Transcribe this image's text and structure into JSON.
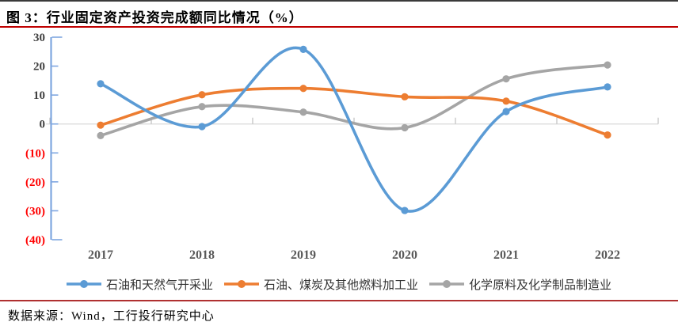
{
  "figure": {
    "title": "图 3：行业固定资产投资完成额同比情况（%）"
  },
  "footer": {
    "text": "数据来源：Wind，工行投行研究中心"
  },
  "colors": {
    "blue": "#5B9BD5",
    "orange": "#ED7D31",
    "gray": "#A5A5A5",
    "axis": "#7EA6E0",
    "zero_line": "#D9D9D9",
    "boundary_tick": "#BFBFBF",
    "positive_label": "#404040",
    "negative_label": "#FF0000",
    "title_rule": "#C00000",
    "footer_rule": "#B03030"
  },
  "chart_data": {
    "type": "line",
    "title": "图 3：行业固定资产投资完成额同比情况（%）",
    "x": [
      "2017",
      "2018",
      "2019",
      "2020",
      "2021",
      "2022"
    ],
    "series": [
      {
        "name": "石油和天然气开采业",
        "color": "#5B9BD5",
        "values": [
          13.9,
          -0.9,
          25.8,
          -29.9,
          4.3,
          12.8
        ]
      },
      {
        "name": "石油、煤炭及其他燃料加工业",
        "color": "#ED7D31",
        "values": [
          -0.4,
          10.1,
          12.3,
          9.4,
          7.9,
          -3.8
        ]
      },
      {
        "name": "化学原料及化学制品制造业",
        "color": "#A5A5A5",
        "values": [
          -4.0,
          6.0,
          4.1,
          -1.3,
          15.6,
          20.4
        ]
      }
    ],
    "ylim": [
      -40,
      30
    ],
    "ytick_step": 10,
    "ytick_labels": [
      "30",
      "20",
      "10",
      "0",
      "(10)",
      "(20)",
      "(30)",
      "(40)"
    ],
    "negative_ticks_red": true,
    "smooth": true,
    "grid": false,
    "legend_position": "bottom",
    "marker": "circle"
  }
}
